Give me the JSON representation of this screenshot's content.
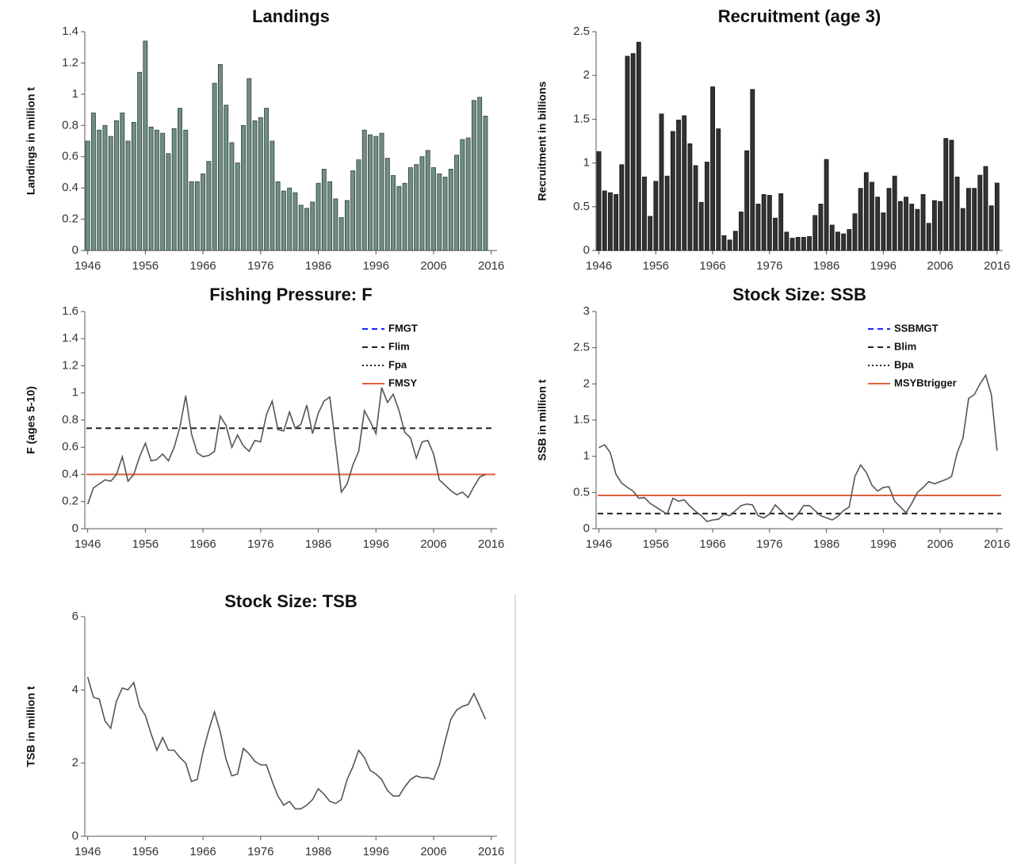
{
  "chart_data": [
    {
      "type": "bar",
      "title": "Landings",
      "y_label": "Landings in million t",
      "color": "#6f8f82",
      "edge_color": "#2f3f38",
      "x": [
        1946,
        1947,
        1948,
        1949,
        1950,
        1951,
        1952,
        1953,
        1954,
        1955,
        1956,
        1957,
        1958,
        1959,
        1960,
        1961,
        1962,
        1963,
        1964,
        1965,
        1966,
        1967,
        1968,
        1969,
        1970,
        1971,
        1972,
        1973,
        1974,
        1975,
        1976,
        1977,
        1978,
        1979,
        1980,
        1981,
        1982,
        1983,
        1984,
        1985,
        1986,
        1987,
        1988,
        1989,
        1990,
        1991,
        1992,
        1993,
        1994,
        1995,
        1996,
        1997,
        1998,
        1999,
        2000,
        2001,
        2002,
        2003,
        2004,
        2005,
        2006,
        2007,
        2008,
        2009,
        2010,
        2011,
        2012,
        2013,
        2014,
        2015
      ],
      "values": [
        0.7,
        0.88,
        0.77,
        0.8,
        0.73,
        0.83,
        0.88,
        0.7,
        0.82,
        1.14,
        1.34,
        0.79,
        0.77,
        0.75,
        0.62,
        0.78,
        0.91,
        0.77,
        0.44,
        0.44,
        0.49,
        0.57,
        1.07,
        1.19,
        0.93,
        0.69,
        0.56,
        0.8,
        1.1,
        0.83,
        0.85,
        0.91,
        0.7,
        0.44,
        0.38,
        0.4,
        0.37,
        0.29,
        0.27,
        0.31,
        0.43,
        0.52,
        0.44,
        0.33,
        0.21,
        0.32,
        0.51,
        0.58,
        0.77,
        0.74,
        0.73,
        0.75,
        0.59,
        0.48,
        0.41,
        0.43,
        0.53,
        0.55,
        0.6,
        0.64,
        0.53,
        0.49,
        0.47,
        0.52,
        0.61,
        0.71,
        0.72,
        0.96,
        0.98,
        0.86
      ],
      "xlim": [
        1945.5,
        2017
      ],
      "xticks": [
        1946,
        1956,
        1966,
        1976,
        1986,
        1996,
        2006,
        2016
      ],
      "ylim": [
        0,
        1.4
      ],
      "yticks": [
        0,
        0.2,
        0.4,
        0.6,
        0.8,
        1,
        1.2,
        1.4
      ]
    },
    {
      "type": "bar",
      "title": "Recruitment (age 3)",
      "y_label": "Recruitment in billions",
      "color": "#333333",
      "edge_color": "#111111",
      "x": [
        1946,
        1947,
        1948,
        1949,
        1950,
        1951,
        1952,
        1953,
        1954,
        1955,
        1956,
        1957,
        1958,
        1959,
        1960,
        1961,
        1962,
        1963,
        1964,
        1965,
        1966,
        1967,
        1968,
        1969,
        1970,
        1971,
        1972,
        1973,
        1974,
        1975,
        1976,
        1977,
        1978,
        1979,
        1980,
        1981,
        1982,
        1983,
        1984,
        1985,
        1986,
        1987,
        1988,
        1989,
        1990,
        1991,
        1992,
        1993,
        1994,
        1995,
        1996,
        1997,
        1998,
        1999,
        2000,
        2001,
        2002,
        2003,
        2004,
        2005,
        2006,
        2007,
        2008,
        2009,
        2010,
        2011,
        2012,
        2013,
        2014,
        2015,
        2016
      ],
      "values": [
        1.13,
        0.68,
        0.66,
        0.64,
        0.98,
        2.22,
        2.25,
        2.38,
        0.84,
        0.39,
        0.79,
        1.56,
        0.85,
        1.36,
        1.49,
        1.54,
        1.22,
        0.97,
        0.55,
        1.01,
        1.87,
        1.39,
        0.17,
        0.12,
        0.22,
        0.44,
        1.14,
        1.84,
        0.53,
        0.64,
        0.63,
        0.37,
        0.65,
        0.21,
        0.14,
        0.15,
        0.15,
        0.16,
        0.4,
        0.53,
        1.04,
        0.29,
        0.21,
        0.19,
        0.24,
        0.42,
        0.71,
        0.89,
        0.78,
        0.61,
        0.43,
        0.71,
        0.85,
        0.56,
        0.61,
        0.53,
        0.47,
        0.64,
        0.31,
        0.57,
        0.56,
        1.28,
        1.26,
        0.84,
        0.48,
        0.71,
        0.71,
        0.86,
        0.96,
        0.51,
        0.77
      ],
      "xlim": [
        1945.5,
        2017
      ],
      "xticks": [
        1946,
        1956,
        1966,
        1976,
        1986,
        1996,
        2006,
        2016
      ],
      "ylim": [
        0,
        2.5
      ],
      "yticks": [
        0,
        0.5,
        1,
        1.5,
        2,
        2.5
      ]
    },
    {
      "type": "line",
      "title": "Fishing Pressure: F",
      "y_label": "F (ages 5-10)",
      "color": "#555555",
      "x": [
        1946,
        1947,
        1948,
        1949,
        1950,
        1951,
        1952,
        1953,
        1954,
        1955,
        1956,
        1957,
        1958,
        1959,
        1960,
        1961,
        1962,
        1963,
        1964,
        1965,
        1966,
        1967,
        1968,
        1969,
        1970,
        1971,
        1972,
        1973,
        1974,
        1975,
        1976,
        1977,
        1978,
        1979,
        1980,
        1981,
        1982,
        1983,
        1984,
        1985,
        1986,
        1987,
        1988,
        1989,
        1990,
        1991,
        1992,
        1993,
        1994,
        1995,
        1996,
        1997,
        1998,
        1999,
        2000,
        2001,
        2002,
        2003,
        2004,
        2005,
        2006,
        2007,
        2008,
        2009,
        2010,
        2011,
        2012,
        2013,
        2014,
        2015
      ],
      "values": [
        0.18,
        0.3,
        0.33,
        0.36,
        0.35,
        0.4,
        0.53,
        0.35,
        0.4,
        0.53,
        0.63,
        0.5,
        0.51,
        0.55,
        0.5,
        0.6,
        0.75,
        0.98,
        0.7,
        0.56,
        0.53,
        0.54,
        0.57,
        0.83,
        0.76,
        0.6,
        0.69,
        0.61,
        0.57,
        0.65,
        0.64,
        0.84,
        0.94,
        0.73,
        0.72,
        0.86,
        0.74,
        0.77,
        0.91,
        0.7,
        0.85,
        0.94,
        0.97,
        0.62,
        0.27,
        0.33,
        0.47,
        0.57,
        0.87,
        0.79,
        0.7,
        1.04,
        0.93,
        0.99,
        0.87,
        0.71,
        0.67,
        0.52,
        0.64,
        0.65,
        0.55,
        0.36,
        0.32,
        0.28,
        0.25,
        0.27,
        0.23,
        0.31,
        0.38,
        0.4
      ],
      "reference_lines": [
        {
          "name": "FMGT",
          "color": "#2020ff",
          "style": "dashed",
          "value": null
        },
        {
          "name": "Flim",
          "color": "#222222",
          "style": "dashed",
          "value": 0.74
        },
        {
          "name": "Fpa",
          "color": "#222222",
          "style": "dotted",
          "value": 0.4
        },
        {
          "name": "FMSY",
          "color": "#e0603a",
          "style": "solid",
          "value": 0.4
        }
      ],
      "legend": "upper right",
      "xlim": [
        1945.5,
        2017
      ],
      "xticks": [
        1946,
        1956,
        1966,
        1976,
        1986,
        1996,
        2006,
        2016
      ],
      "ylim": [
        0,
        1.6
      ],
      "yticks": [
        0,
        0.2,
        0.4,
        0.6,
        0.8,
        1,
        1.2,
        1.4,
        1.6
      ]
    },
    {
      "type": "line",
      "title": "Stock Size: SSB",
      "y_label": "SSB in million t",
      "color": "#555555",
      "x": [
        1946,
        1947,
        1948,
        1949,
        1950,
        1951,
        1952,
        1953,
        1954,
        1955,
        1956,
        1957,
        1958,
        1959,
        1960,
        1961,
        1962,
        1963,
        1964,
        1965,
        1966,
        1967,
        1968,
        1969,
        1970,
        1971,
        1972,
        1973,
        1974,
        1975,
        1976,
        1977,
        1978,
        1979,
        1980,
        1981,
        1982,
        1983,
        1984,
        1985,
        1986,
        1987,
        1988,
        1989,
        1990,
        1991,
        1992,
        1993,
        1994,
        1995,
        1996,
        1997,
        1998,
        1999,
        2000,
        2001,
        2002,
        2003,
        2004,
        2005,
        2006,
        2007,
        2008,
        2009,
        2010,
        2011,
        2012,
        2013,
        2014,
        2015,
        2016
      ],
      "values": [
        1.12,
        1.16,
        1.05,
        0.75,
        0.63,
        0.57,
        0.52,
        0.42,
        0.43,
        0.35,
        0.3,
        0.25,
        0.2,
        0.42,
        0.38,
        0.4,
        0.31,
        0.24,
        0.18,
        0.1,
        0.12,
        0.13,
        0.2,
        0.18,
        0.25,
        0.32,
        0.34,
        0.33,
        0.18,
        0.15,
        0.2,
        0.33,
        0.25,
        0.17,
        0.12,
        0.2,
        0.32,
        0.32,
        0.25,
        0.18,
        0.15,
        0.12,
        0.17,
        0.25,
        0.3,
        0.72,
        0.88,
        0.78,
        0.6,
        0.52,
        0.57,
        0.58,
        0.38,
        0.3,
        0.22,
        0.35,
        0.5,
        0.57,
        0.65,
        0.62,
        0.65,
        0.68,
        0.72,
        1.05,
        1.25,
        1.8,
        1.85,
        2.0,
        2.12,
        1.85,
        1.08
      ],
      "reference_lines": [
        {
          "name": "SSBMGT",
          "color": "#2020ff",
          "style": "dashed",
          "value": null
        },
        {
          "name": "Blim",
          "color": "#222222",
          "style": "dashed",
          "value": 0.21
        },
        {
          "name": "Bpa",
          "color": "#222222",
          "style": "dotted",
          "value": 0.46
        },
        {
          "name": "MSYBtrigger",
          "color": "#e0603a",
          "style": "solid",
          "value": 0.46
        }
      ],
      "legend": "upper right",
      "xlim": [
        1945.5,
        2017
      ],
      "xticks": [
        1946,
        1956,
        1966,
        1976,
        1986,
        1996,
        2006,
        2016
      ],
      "ylim": [
        0,
        3
      ],
      "yticks": [
        0,
        0.5,
        1,
        1.5,
        2,
        2.5,
        3
      ]
    },
    {
      "type": "line",
      "title": "Stock Size: TSB",
      "y_label": "TSB in million t",
      "color": "#555555",
      "x": [
        1946,
        1947,
        1948,
        1949,
        1950,
        1951,
        1952,
        1953,
        1954,
        1955,
        1956,
        1957,
        1958,
        1959,
        1960,
        1961,
        1962,
        1963,
        1964,
        1965,
        1966,
        1967,
        1968,
        1969,
        1970,
        1971,
        1972,
        1973,
        1974,
        1975,
        1976,
        1977,
        1978,
        1979,
        1980,
        1981,
        1982,
        1983,
        1984,
        1985,
        1986,
        1987,
        1988,
        1989,
        1990,
        1991,
        1992,
        1993,
        1994,
        1995,
        1996,
        1997,
        1998,
        1999,
        2000,
        2001,
        2002,
        2003,
        2004,
        2005,
        2006,
        2007,
        2008,
        2009,
        2010,
        2011,
        2012,
        2013,
        2014,
        2015
      ],
      "values": [
        4.35,
        3.8,
        3.75,
        3.15,
        2.95,
        3.7,
        4.05,
        4.0,
        4.2,
        3.55,
        3.3,
        2.8,
        2.35,
        2.7,
        2.35,
        2.35,
        2.15,
        2.0,
        1.5,
        1.55,
        2.3,
        2.9,
        3.4,
        2.85,
        2.1,
        1.65,
        1.7,
        2.4,
        2.25,
        2.05,
        1.95,
        1.95,
        1.5,
        1.1,
        0.85,
        0.95,
        0.75,
        0.75,
        0.85,
        1.0,
        1.3,
        1.15,
        0.95,
        0.9,
        1.0,
        1.55,
        1.9,
        2.35,
        2.15,
        1.8,
        1.7,
        1.55,
        1.25,
        1.1,
        1.1,
        1.35,
        1.55,
        1.65,
        1.6,
        1.6,
        1.55,
        1.95,
        2.6,
        3.2,
        3.45,
        3.55,
        3.6,
        3.9,
        3.55,
        3.2
      ],
      "xlim": [
        1945.5,
        2017
      ],
      "xticks": [
        1946,
        1956,
        1966,
        1976,
        1986,
        1996,
        2006,
        2016
      ],
      "ylim": [
        0,
        6
      ],
      "yticks": [
        0,
        2,
        4,
        6
      ]
    }
  ]
}
